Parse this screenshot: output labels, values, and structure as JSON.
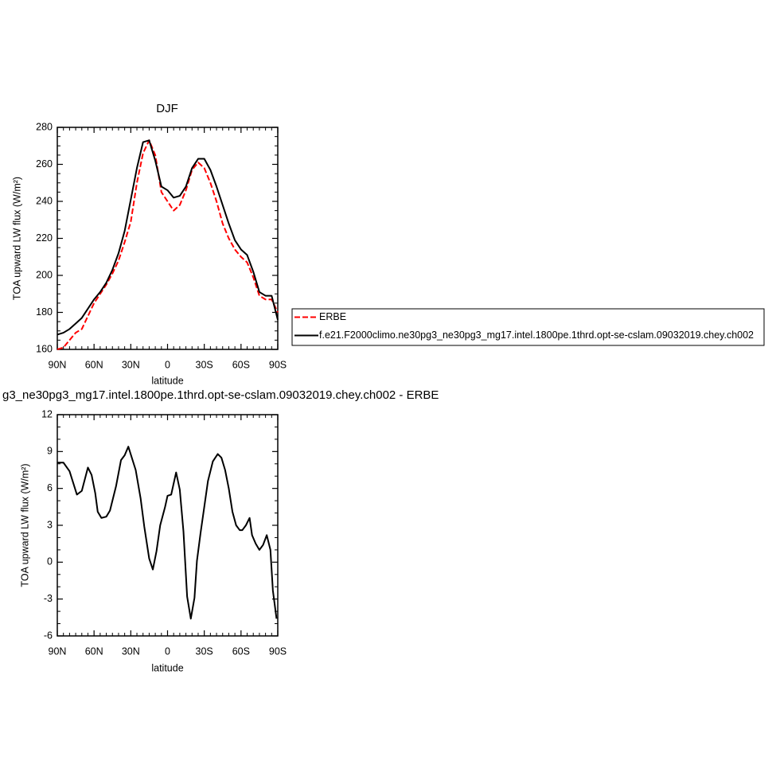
{
  "chart_data": [
    {
      "type": "line",
      "title": "DJF",
      "x_label": "latitude",
      "y_label": "TOA upward LW flux (W/m²)",
      "xlim": [
        90,
        -90
      ],
      "ylim": [
        160,
        280
      ],
      "xticks": [
        {
          "value": 90,
          "label": "90N"
        },
        {
          "value": 60,
          "label": "60N"
        },
        {
          "value": 30,
          "label": "30N"
        },
        0,
        {
          "value": -30,
          "label": "30S"
        },
        {
          "value": -60,
          "label": "60S"
        },
        {
          "value": -90,
          "label": "90S"
        }
      ],
      "yticks": [
        160,
        180,
        200,
        220,
        240,
        260,
        280
      ],
      "legend": "right",
      "x": [
        90,
        85,
        80,
        75,
        70,
        65,
        60,
        55,
        50,
        45,
        40,
        35,
        30,
        25,
        20,
        15,
        10,
        5,
        0,
        -5,
        -10,
        -15,
        -20,
        -25,
        -30,
        -35,
        -40,
        -45,
        -50,
        -55,
        -60,
        -65,
        -70,
        -75,
        -80,
        -85,
        -90
      ],
      "series": [
        {
          "name": "ERBE",
          "color": "#ff0000",
          "dash": true,
          "values": [
            160,
            161,
            165,
            169,
            171,
            178,
            185,
            190,
            195,
            201,
            208,
            218,
            229,
            250,
            266,
            273,
            265,
            245,
            240,
            235,
            238,
            246,
            257,
            261,
            258,
            250,
            240,
            228,
            220,
            214,
            210,
            207,
            199,
            189,
            187,
            187,
            180
          ]
        },
        {
          "name": "f.e21.F2000climo.ne30pg3_ne30pg3_mg17.intel.1800pe.1thrd.opt-se-cslam.09032019.chey.ch002",
          "color": "#000000",
          "dash": false,
          "values": [
            168,
            169,
            171,
            174,
            177,
            182,
            187,
            191,
            196,
            203,
            212,
            224,
            241,
            258,
            272,
            273,
            262,
            248,
            246,
            242,
            243,
            248,
            258,
            263,
            263,
            257,
            248,
            238,
            228,
            219,
            214,
            211,
            202,
            191,
            189,
            189,
            176
          ]
        }
      ]
    },
    {
      "type": "line",
      "title": "g3_ne30pg3_mg17.intel.1800pe.1thrd.opt-se-cslam.09032019.chey.ch002 - ERBE",
      "x_label": "latitude",
      "y_label": "TOA upward LW flux (W/m²)",
      "xlim": [
        90,
        -90
      ],
      "ylim": [
        -6,
        12
      ],
      "xticks": [
        {
          "value": 90,
          "label": "90N"
        },
        {
          "value": 60,
          "label": "60N"
        },
        {
          "value": 30,
          "label": "30N"
        },
        0,
        {
          "value": -30,
          "label": "30S"
        },
        {
          "value": -60,
          "label": "60S"
        },
        {
          "value": -90,
          "label": "90S"
        }
      ],
      "yticks": [
        -6,
        -3,
        0,
        3,
        6,
        9,
        12
      ],
      "x": [
        90,
        85,
        80,
        74,
        70,
        65,
        62,
        59,
        57,
        54,
        50,
        47,
        42,
        38,
        35,
        32,
        26,
        22,
        19,
        15,
        12,
        9,
        6,
        2,
        0,
        -3,
        -7,
        -10,
        -13,
        -16,
        -19,
        -22,
        -24,
        -27,
        -30,
        -33,
        -37,
        -41,
        -44,
        -47,
        -50,
        -53,
        -56,
        -59,
        -61,
        -64,
        -67,
        -69,
        -72,
        -75,
        -78,
        -81,
        -84,
        -86,
        -89
      ],
      "series": [
        {
          "color": "#000000",
          "dash": false,
          "values": [
            8.1,
            8.1,
            7.4,
            5.5,
            5.8,
            7.7,
            7.1,
            5.6,
            4.1,
            3.6,
            3.7,
            4.2,
            6.2,
            8.3,
            8.7,
            9.4,
            7.5,
            5.2,
            2.9,
            0.3,
            -0.6,
            0.9,
            3.0,
            4.5,
            5.4,
            5.5,
            7.3,
            5.9,
            2.5,
            -2.8,
            -4.6,
            -2.9,
            0.1,
            2.4,
            4.5,
            6.6,
            8.2,
            8.8,
            8.5,
            7.5,
            6.0,
            4.1,
            3.0,
            2.6,
            2.6,
            3.0,
            3.6,
            2.2,
            1.5,
            1.0,
            1.4,
            2.2,
            1.0,
            -2.3,
            -4.6
          ]
        }
      ]
    }
  ]
}
